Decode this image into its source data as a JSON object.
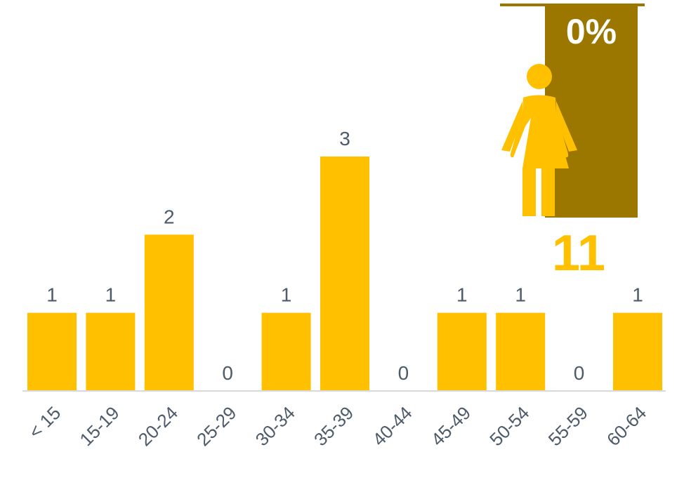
{
  "chart_data": {
    "type": "bar",
    "categories": [
      "< 15",
      "15-19",
      "20-24",
      "25-29",
      "30-34",
      "35-39",
      "40-44",
      "45-49",
      "50-54",
      "55-59",
      "60-64"
    ],
    "values": [
      1,
      1,
      2,
      0,
      1,
      3,
      0,
      1,
      1,
      0,
      1
    ],
    "ylim": [
      0,
      3
    ],
    "grid": false,
    "data_labels": true
  },
  "summary": {
    "percent_label": "0%",
    "total_label": "11",
    "icon": "female-person-icon"
  },
  "colors": {
    "bar": "#FFC000",
    "panel": "#9C7700",
    "axis": "#D9D9D9",
    "text": "#4D5B6A",
    "icon": "#FFC000"
  }
}
